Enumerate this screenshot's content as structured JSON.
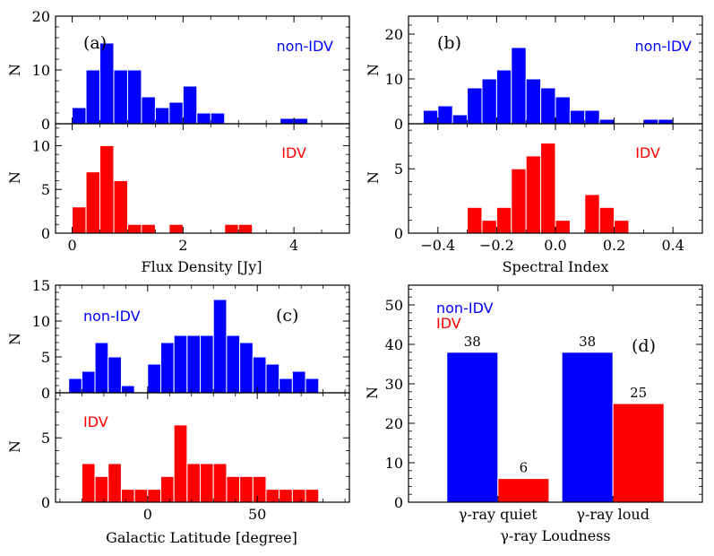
{
  "colors": {
    "non_idv": "#0000ff",
    "idv": "#ff0000",
    "axis": "#000000"
  },
  "chart_data": [
    {
      "type": "bar",
      "title": "",
      "panel_label": "(a)",
      "xlabel": "Flux Density [Jy]",
      "xlim": [
        -0.3,
        5.0
      ],
      "xticks": [
        0,
        2,
        4
      ],
      "xtick_labels": [
        "0",
        "2",
        "4"
      ],
      "bin_width": 0.25,
      "series": [
        {
          "name": "non-IDV",
          "ylabel": "N",
          "ylim": [
            0,
            20
          ],
          "yticks": [
            0,
            10,
            20
          ],
          "ytick_labels": [
            "0",
            "10",
            "20"
          ],
          "bin_starts": [
            0.0,
            0.25,
            0.5,
            0.75,
            1.0,
            1.25,
            1.5,
            1.75,
            2.0,
            2.25,
            2.5,
            2.75,
            3.0,
            3.25,
            3.5,
            3.75,
            4.0,
            4.25
          ],
          "values": [
            3,
            10,
            15,
            10,
            10,
            5,
            3,
            4,
            7,
            2,
            2,
            0,
            0,
            0,
            0,
            1,
            1,
            0
          ]
        },
        {
          "name": "IDV",
          "ylabel": "N",
          "ylim": [
            0,
            12.5
          ],
          "yticks": [
            0,
            5,
            10
          ],
          "ytick_labels": [
            "0",
            "5",
            "10"
          ],
          "bin_starts": [
            0.0,
            0.25,
            0.5,
            0.75,
            1.0,
            1.25,
            1.5,
            1.75,
            2.0,
            2.25,
            2.5,
            2.75,
            3.0,
            3.25
          ],
          "values": [
            3,
            7,
            10,
            6,
            1,
            1,
            0,
            1,
            0,
            0,
            0,
            1,
            1,
            0
          ]
        }
      ]
    },
    {
      "type": "bar",
      "title": "",
      "panel_label": "(b)",
      "xlabel": "Spectral Index",
      "xlim": [
        -0.5,
        0.5
      ],
      "xticks": [
        -0.4,
        -0.2,
        0.0,
        0.2,
        0.4
      ],
      "xtick_labels": [
        "−0.4",
        "−0.2",
        "0.0",
        "0.2",
        "0.4"
      ],
      "bin_width": 0.05,
      "series": [
        {
          "name": "non-IDV",
          "ylabel": "N",
          "ylim": [
            0,
            24
          ],
          "yticks": [
            0,
            10,
            20
          ],
          "ytick_labels": [
            "0",
            "10",
            "20"
          ],
          "bin_starts": [
            -0.45,
            -0.4,
            -0.35,
            -0.3,
            -0.25,
            -0.2,
            -0.15,
            -0.1,
            -0.05,
            0.0,
            0.05,
            0.1,
            0.15,
            0.2,
            0.25,
            0.3,
            0.35
          ],
          "values": [
            3,
            4,
            2,
            8,
            10,
            12,
            17,
            10,
            8,
            6,
            3,
            3,
            1,
            0,
            0,
            1,
            1
          ]
        },
        {
          "name": "IDV",
          "ylabel": "N",
          "ylim": [
            0,
            8.5
          ],
          "yticks": [
            0,
            5
          ],
          "ytick_labels": [
            "0",
            "5"
          ],
          "bin_starts": [
            -0.3,
            -0.25,
            -0.2,
            -0.15,
            -0.1,
            -0.05,
            0.0,
            0.05,
            0.1,
            0.15,
            0.2
          ],
          "values": [
            2,
            1,
            2,
            5,
            6,
            7,
            1,
            0,
            3,
            2,
            1
          ]
        }
      ]
    },
    {
      "type": "bar",
      "title": "",
      "panel_label": "(c)",
      "xlabel": "Galactic Latitude [degree]",
      "xlim": [
        -42,
        92
      ],
      "xticks": [
        0,
        50
      ],
      "xtick_labels": [
        "0",
        "50"
      ],
      "bin_width": 6,
      "series": [
        {
          "name": "non-IDV",
          "ylabel": "N",
          "ylim": [
            0,
            15
          ],
          "yticks": [
            0,
            5,
            10,
            15
          ],
          "ytick_labels": [
            "0",
            "5",
            "10",
            "15"
          ],
          "bin_starts": [
            -36,
            -30,
            -24,
            -18,
            -12,
            -6,
            0,
            6,
            12,
            18,
            24,
            30,
            36,
            42,
            48,
            54,
            60,
            66,
            72,
            78
          ],
          "values": [
            2,
            3,
            7,
            5,
            1,
            0,
            4,
            7,
            8,
            8,
            8,
            13,
            8,
            7,
            5,
            4,
            2,
            3,
            2,
            0
          ]
        },
        {
          "name": "IDV",
          "ylabel": "N",
          "ylim": [
            0,
            8.5
          ],
          "yticks": [
            0,
            5
          ],
          "ytick_labels": [
            "0",
            "5"
          ],
          "bin_starts": [
            -30,
            -24,
            -18,
            -12,
            -6,
            0,
            6,
            12,
            18,
            24,
            30,
            36,
            42,
            48,
            54,
            60,
            66,
            72,
            78
          ],
          "values": [
            3,
            2,
            3,
            1,
            1,
            1,
            2,
            6,
            3,
            3,
            3,
            2,
            2,
            2,
            1,
            1,
            1,
            1,
            0
          ]
        }
      ]
    },
    {
      "type": "bar",
      "title": "",
      "panel_label": "(d)",
      "xlabel": "γ-ray Loudness",
      "ylabel": "N",
      "ylim": [
        0,
        55
      ],
      "yticks": [
        0,
        10,
        20,
        30,
        40,
        50
      ],
      "ytick_labels": [
        "0",
        "10",
        "20",
        "30",
        "40",
        "50"
      ],
      "categories": [
        "γ-ray quiet",
        "γ-ray loud"
      ],
      "legend": [
        "non-IDV",
        "IDV"
      ],
      "legend_position": "top-left",
      "series": [
        {
          "name": "non-IDV",
          "values": [
            38,
            38
          ],
          "labels": [
            "38",
            "38"
          ]
        },
        {
          "name": "IDV",
          "values": [
            6,
            25
          ],
          "labels": [
            "6",
            "25"
          ]
        }
      ]
    }
  ]
}
